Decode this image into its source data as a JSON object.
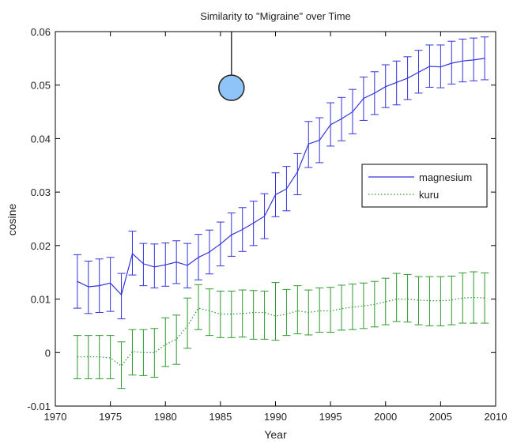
{
  "chart_data": {
    "type": "line",
    "title": "Similarity to \"Migraine\" over Time",
    "xlabel": "Year",
    "ylabel": "cosine",
    "xlim": [
      1970,
      2010
    ],
    "ylim": [
      -0.01,
      0.06
    ],
    "xticks": [
      1970,
      1975,
      1980,
      1985,
      1990,
      1995,
      2000,
      2005,
      2010
    ],
    "xtick_labels": [
      "1970",
      "1975",
      "1980",
      "1985",
      "1990",
      "1995",
      "2000",
      "2005",
      "2010"
    ],
    "yticks": [
      -0.01,
      0,
      0.01,
      0.02,
      0.03,
      0.04,
      0.05,
      0.06
    ],
    "ytick_labels": [
      "-0.01",
      "0",
      "0.01",
      "0.02",
      "0.03",
      "0.04",
      "0.05",
      "0.06"
    ],
    "legend_position": "right",
    "grid": false,
    "x": [
      1972,
      1973,
      1974,
      1975,
      1976,
      1977,
      1978,
      1979,
      1980,
      1981,
      1982,
      1983,
      1984,
      1985,
      1986,
      1987,
      1988,
      1989,
      1990,
      1991,
      1992,
      1993,
      1994,
      1995,
      1996,
      1997,
      1998,
      1999,
      2000,
      2001,
      2002,
      2003,
      2004,
      2005,
      2006,
      2007,
      2008,
      2009
    ],
    "series": [
      {
        "name": "magnesium",
        "color": "#3333dd",
        "style": "solid",
        "values": [
          0.0133,
          0.0123,
          0.0125,
          0.013,
          0.0108,
          0.0185,
          0.0166,
          0.016,
          0.0164,
          0.0169,
          0.0163,
          0.0178,
          0.0188,
          0.0203,
          0.022,
          0.023,
          0.0242,
          0.0255,
          0.0295,
          0.0306,
          0.0338,
          0.039,
          0.0397,
          0.0426,
          0.0437,
          0.045,
          0.0475,
          0.0485,
          0.0497,
          0.0505,
          0.0513,
          0.0524,
          0.0535,
          0.0534,
          0.0541,
          0.0545,
          0.0547,
          0.055
        ],
        "err_low": [
          0.0083,
          0.0073,
          0.0075,
          0.0077,
          0.0063,
          0.0145,
          0.0125,
          0.0121,
          0.0124,
          0.0129,
          0.0121,
          0.0136,
          0.0147,
          0.0162,
          0.018,
          0.0189,
          0.02,
          0.0213,
          0.0254,
          0.0265,
          0.0295,
          0.0346,
          0.0355,
          0.0386,
          0.0396,
          0.0409,
          0.0434,
          0.0445,
          0.0458,
          0.0463,
          0.0473,
          0.0485,
          0.0496,
          0.0495,
          0.0502,
          0.0506,
          0.0508,
          0.051
        ],
        "err_high": [
          0.0183,
          0.0171,
          0.0175,
          0.0178,
          0.0148,
          0.0227,
          0.0204,
          0.0203,
          0.0205,
          0.0209,
          0.0204,
          0.0221,
          0.0229,
          0.0244,
          0.0261,
          0.0271,
          0.0283,
          0.0297,
          0.0336,
          0.0348,
          0.0372,
          0.0432,
          0.0439,
          0.0467,
          0.0477,
          0.0492,
          0.0515,
          0.0525,
          0.0538,
          0.0545,
          0.0553,
          0.0565,
          0.0575,
          0.0575,
          0.0582,
          0.0586,
          0.0588,
          0.059
        ]
      },
      {
        "name": "kuru",
        "color": "#2e9a2e",
        "style": "dotted",
        "values": [
          -0.0008,
          -0.0008,
          -0.0008,
          -0.001,
          -0.0025,
          0.0002,
          0.0,
          0.0,
          0.0015,
          0.0025,
          0.005,
          0.0083,
          0.0078,
          0.0072,
          0.0072,
          0.0073,
          0.0075,
          0.0075,
          0.0068,
          0.0072,
          0.0078,
          0.0075,
          0.0078,
          0.0078,
          0.0082,
          0.0085,
          0.0087,
          0.009,
          0.0095,
          0.01,
          0.01,
          0.0098,
          0.0097,
          0.0097,
          0.0098,
          0.0102,
          0.0103,
          0.0102
        ],
        "err_low": [
          -0.0049,
          -0.0049,
          -0.0049,
          -0.0049,
          -0.0067,
          -0.0042,
          -0.0043,
          -0.0046,
          -0.0026,
          -0.0022,
          0.0008,
          0.0043,
          0.0032,
          0.0028,
          0.0028,
          0.0029,
          0.0025,
          0.0025,
          0.0023,
          0.0032,
          0.0035,
          0.0033,
          0.0038,
          0.0038,
          0.0042,
          0.0043,
          0.0045,
          0.0048,
          0.0052,
          0.0058,
          0.0057,
          0.0052,
          0.005,
          0.005,
          0.0052,
          0.0055,
          0.0055,
          0.0055
        ],
        "err_high": [
          0.0032,
          0.0032,
          0.0032,
          0.0032,
          0.002,
          0.0043,
          0.0043,
          0.0045,
          0.0065,
          0.007,
          0.0102,
          0.0127,
          0.0119,
          0.0115,
          0.0115,
          0.0117,
          0.0116,
          0.0115,
          0.0131,
          0.0118,
          0.0125,
          0.0117,
          0.0121,
          0.0122,
          0.0126,
          0.0128,
          0.013,
          0.0133,
          0.0139,
          0.0148,
          0.0146,
          0.0142,
          0.0142,
          0.0142,
          0.0143,
          0.0149,
          0.0151,
          0.0149
        ]
      }
    ],
    "annotation": {
      "type": "lollipop-marker",
      "x": 1986,
      "y": 0.0495,
      "color": "#8ec4f7",
      "outline": "#222222"
    }
  }
}
